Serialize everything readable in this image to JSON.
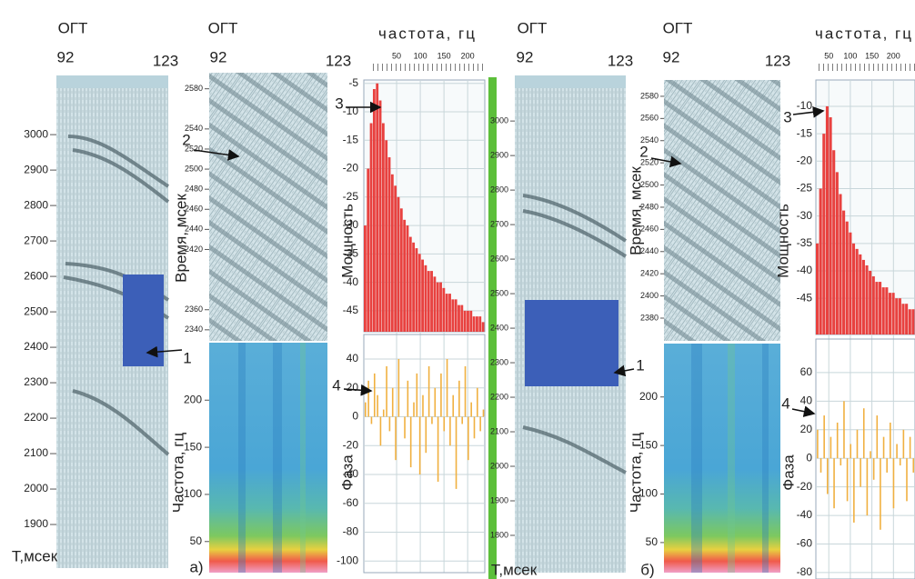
{
  "panel_a": {
    "section": {
      "header": "ОГТ",
      "trace_start": 92,
      "trace_end": 123,
      "time_unit": "Т,мсек",
      "arrow_label": "1",
      "ylim": [
        1777,
        3167
      ],
      "yticks": [
        1900,
        2000,
        2100,
        2200,
        2300,
        2400,
        2500,
        2600,
        2700,
        2800,
        2900,
        3000
      ]
    },
    "window": {
      "header": "ОГТ",
      "trace_start": 92,
      "trace_end": 123,
      "time_axis_label": "Время, мсек",
      "freq_axis_label": "Частота, гц",
      "arrow_label": "2",
      "caption": "а)",
      "ylim": [
        2329,
        2596
      ],
      "yticks": [
        2340,
        2360,
        2420,
        2440,
        2460,
        2480,
        2500,
        2520,
        2540,
        2580
      ],
      "freq_lim": [
        17,
        261
      ],
      "freq_ticks": [
        200,
        150,
        100,
        50
      ]
    },
    "power": {
      "type": "bar",
      "freq_axis_label": "частота, гц",
      "y_axis_label": "Мощность",
      "arrow_label": "3",
      "color": "#e8413f",
      "xlim": [
        0,
        240
      ],
      "xticks": [
        50,
        100,
        150,
        200
      ],
      "ylim": [
        -48.7,
        -4.4
      ],
      "yticks": [
        -5,
        -10,
        -15,
        -20,
        -25,
        -30,
        -35,
        -40,
        -45
      ],
      "values": [
        -30,
        -20,
        -12,
        -6,
        -5,
        -8,
        -12,
        -15,
        -18,
        -21,
        -23,
        -25,
        -27,
        -29,
        -30,
        -32,
        -33,
        -34,
        -35,
        -36,
        -37,
        -38,
        -38,
        -39,
        -40,
        -40,
        -41,
        -42,
        -42,
        -43,
        -43,
        -44,
        -44,
        -45,
        -45,
        -45,
        -46,
        -46,
        -46,
        -47
      ]
    },
    "phase": {
      "type": "bar",
      "y_axis_label": "Фаза",
      "arrow_label": "4",
      "color": "#f0b040",
      "ylim": [
        -108,
        57
      ],
      "yticks": [
        40,
        20,
        0,
        -20,
        -40,
        -60,
        -80,
        -100
      ],
      "values": [
        10,
        25,
        -5,
        30,
        15,
        -20,
        5,
        35,
        -10,
        20,
        -30,
        40,
        0,
        -15,
        25,
        -35,
        10,
        30,
        -40,
        15,
        -25,
        35,
        -5,
        20,
        -45,
        30,
        -10,
        40,
        -20,
        15,
        -50,
        25,
        -5,
        35,
        -30,
        10,
        -15,
        20,
        -10,
        5
      ]
    }
  },
  "panel_b": {
    "section": {
      "header": "ОГТ",
      "trace_start": 92,
      "trace_end": 123,
      "time_unit": "Т,мсек",
      "arrow_label": "1",
      "ylim": [
        1692,
        3132
      ],
      "yticks": [
        1800,
        1900,
        2000,
        2100,
        2200,
        2300,
        2400,
        2500,
        2600,
        2700,
        2800,
        2900,
        3000
      ]
    },
    "window": {
      "header": "ОГТ",
      "trace_start": 92,
      "trace_end": 123,
      "time_axis_label": "Время, мсек",
      "freq_axis_label": "Частота, гц",
      "arrow_label": "2",
      "caption": "б)",
      "ylim": [
        2359.5,
        2594.7
      ],
      "yticks": [
        2380,
        2400,
        2420,
        2440,
        2460,
        2480,
        2500,
        2520,
        2540,
        2560,
        2580
      ],
      "freq_lim": [
        19,
        255
      ],
      "freq_ticks": [
        200,
        150,
        100,
        50
      ]
    },
    "power": {
      "type": "bar",
      "freq_axis_label": "частота, гц",
      "y_axis_label": "Мощность",
      "arrow_label": "3",
      "color": "#e8413f",
      "xlim": [
        20,
        250
      ],
      "xticks": [
        50,
        100,
        150,
        200
      ],
      "ylim": [
        -51.6,
        -5.2
      ],
      "yticks": [
        -10,
        -15,
        -20,
        -25,
        -30,
        -35,
        -40,
        -45
      ],
      "values": [
        -35,
        -25,
        -15,
        -10,
        -12,
        -18,
        -22,
        -26,
        -29,
        -31,
        -33,
        -35,
        -36,
        -37,
        -38,
        -39,
        -40,
        -41,
        -42,
        -42,
        -43,
        -43,
        -44,
        -44,
        -45,
        -45,
        -46,
        -46,
        -47,
        -47
      ]
    },
    "phase": {
      "type": "bar",
      "y_axis_label": "Фаза",
      "arrow_label": "4",
      "color": "#f0b040",
      "ylim": [
        -84.5,
        83.5
      ],
      "yticks": [
        60,
        40,
        20,
        0,
        -20,
        -40,
        -60,
        -80
      ],
      "values": [
        20,
        -10,
        30,
        -25,
        15,
        -35,
        25,
        -5,
        40,
        -30,
        10,
        -45,
        20,
        -20,
        35,
        -40,
        5,
        -15,
        30,
        -50,
        15,
        -10,
        25,
        -35,
        10,
        -5,
        20,
        -30,
        15,
        -10
      ]
    }
  }
}
